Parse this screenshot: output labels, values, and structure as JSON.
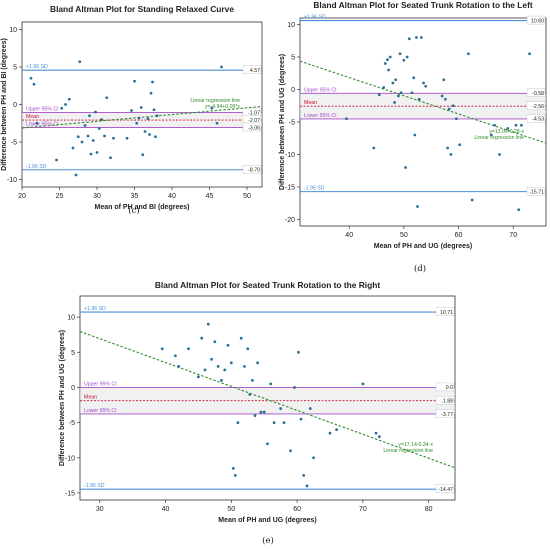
{
  "colors": {
    "sd": "#4a90d9",
    "mean": "#c8102e",
    "ci": "#a64ac9",
    "regression": "#2e8b2e",
    "point": "#2a6f97",
    "ci_band": "#e8e8e8"
  },
  "chart_data": [
    {
      "type": "scatter",
      "panel": "c",
      "caption": "(c)",
      "title": "Bland Altman Plot for Standing Relaxed Curve",
      "xlabel": "Mean of PH and BI (degrees)",
      "ylabel": "Difference between PH and BI (degrees)",
      "xlim": [
        20,
        52
      ],
      "ylim": [
        -11,
        11
      ],
      "xticks": [
        20,
        25,
        30,
        35,
        40,
        45,
        50
      ],
      "yticks": [
        -10,
        -5,
        0,
        5,
        10
      ],
      "reference_lines": [
        {
          "kind": "sd",
          "label": "+1.96 SD",
          "value": 4.57,
          "value_label": "4.57"
        },
        {
          "kind": "ci",
          "label": "Upper 95% CI",
          "value": -1.07,
          "value_label": "-1.07"
        },
        {
          "kind": "mean",
          "label": "Mean",
          "value": -2.07,
          "value_label": "-2.07"
        },
        {
          "kind": "ci",
          "label": "Lower 95% CI",
          "value": -3.06,
          "value_label": "-3.06"
        },
        {
          "kind": "sd",
          "label": "-1.96 SD",
          "value": -8.7,
          "value_label": "-8.70"
        }
      ],
      "regression": {
        "label": "Linear regression line",
        "equation": "y=-4.94+0.09*x",
        "intercept": -4.94,
        "slope": 0.09
      },
      "points": [
        [
          21.2,
          3.5
        ],
        [
          21.6,
          2.7
        ],
        [
          22.0,
          -2.5
        ],
        [
          24.6,
          -7.4
        ],
        [
          25.3,
          -0.5
        ],
        [
          25.8,
          0.0
        ],
        [
          26.3,
          0.7
        ],
        [
          26.8,
          -5.8
        ],
        [
          27.2,
          -9.4
        ],
        [
          27.5,
          -4.3
        ],
        [
          27.7,
          5.7
        ],
        [
          28.0,
          -5.0
        ],
        [
          28.4,
          -2.8
        ],
        [
          28.8,
          -4.2
        ],
        [
          29.0,
          -1.5
        ],
        [
          29.2,
          -6.6
        ],
        [
          29.5,
          -4.8
        ],
        [
          29.8,
          -1.0
        ],
        [
          30.0,
          -6.4
        ],
        [
          30.3,
          -3.2
        ],
        [
          30.6,
          -2.0
        ],
        [
          31.0,
          -4.2
        ],
        [
          31.3,
          0.9
        ],
        [
          31.8,
          -7.1
        ],
        [
          32.2,
          -4.5
        ],
        [
          34.0,
          -4.5
        ],
        [
          34.6,
          -0.8
        ],
        [
          35.0,
          3.1
        ],
        [
          35.3,
          -2.5
        ],
        [
          35.6,
          -1.8
        ],
        [
          35.9,
          -0.4
        ],
        [
          36.1,
          -6.7
        ],
        [
          36.4,
          -3.6
        ],
        [
          36.8,
          -1.9
        ],
        [
          37.0,
          -4.0
        ],
        [
          37.2,
          1.5
        ],
        [
          37.4,
          3.0
        ],
        [
          37.6,
          -0.7
        ],
        [
          37.8,
          -4.3
        ],
        [
          38.0,
          -1.5
        ],
        [
          45.3,
          -0.5
        ],
        [
          46.0,
          -2.5
        ],
        [
          46.6,
          5.0
        ]
      ]
    },
    {
      "type": "scatter",
      "panel": "d",
      "caption": "(d)",
      "title": "Bland Altman Plot for Seated Trunk Rotation to the Left",
      "xlabel": "Mean of PH and UG (degrees)",
      "ylabel": "Difference between PH and UG (degrees)",
      "xlim": [
        31,
        76
      ],
      "ylim": [
        -21,
        11
      ],
      "xticks": [
        40,
        50,
        60,
        70
      ],
      "yticks": [
        -20,
        -15,
        -10,
        -5,
        0,
        5,
        10
      ],
      "reference_lines": [
        {
          "kind": "sd",
          "label": "+1.96 SD",
          "value": 10.6,
          "value_label": "10.60"
        },
        {
          "kind": "ci",
          "label": "Upper 95% CI",
          "value": -0.58,
          "value_label": "-0.58"
        },
        {
          "kind": "mean",
          "label": "Mean",
          "value": -2.56,
          "value_label": "-2.56"
        },
        {
          "kind": "ci",
          "label": "Lower 95% CI",
          "value": -4.53,
          "value_label": "-4.53"
        },
        {
          "kind": "sd",
          "label": "-1.96 SD",
          "value": -15.71,
          "value_label": "-15.71"
        }
      ],
      "regression": {
        "label": "Linear regression line",
        "equation": "y=13.04-0.28·x",
        "intercept": 13.04,
        "slope": -0.28
      },
      "points": [
        [
          39.5,
          -4.5
        ],
        [
          44.5,
          -9.0
        ],
        [
          45.5,
          -0.8
        ],
        [
          46.3,
          0.3
        ],
        [
          46.6,
          4.0
        ],
        [
          47.0,
          4.6
        ],
        [
          47.2,
          3.0
        ],
        [
          47.5,
          5.0
        ],
        [
          48.0,
          1.0
        ],
        [
          48.3,
          -2.0
        ],
        [
          48.5,
          1.5
        ],
        [
          49.0,
          -1.0
        ],
        [
          49.3,
          5.5
        ],
        [
          49.5,
          -0.5
        ],
        [
          50.0,
          4.5
        ],
        [
          50.3,
          -12.0
        ],
        [
          50.6,
          5.0
        ],
        [
          51.0,
          7.8
        ],
        [
          51.5,
          -0.5
        ],
        [
          51.8,
          1.8
        ],
        [
          52.0,
          -7.0
        ],
        [
          52.3,
          8.0
        ],
        [
          52.5,
          -18.0
        ],
        [
          52.8,
          -1.5
        ],
        [
          53.2,
          8.0
        ],
        [
          53.6,
          1.0
        ],
        [
          54.0,
          0.5
        ],
        [
          57.0,
          -1.0
        ],
        [
          57.3,
          1.5
        ],
        [
          57.6,
          -1.5
        ],
        [
          58.0,
          -9.0
        ],
        [
          58.3,
          -3.0
        ],
        [
          58.6,
          -10.0
        ],
        [
          59.0,
          -2.5
        ],
        [
          59.6,
          -4.5
        ],
        [
          60.2,
          -8.5
        ],
        [
          61.8,
          5.5
        ],
        [
          62.5,
          -17.0
        ],
        [
          66.0,
          -7.0
        ],
        [
          66.6,
          -5.5
        ],
        [
          67.5,
          -10.0
        ],
        [
          69.0,
          -6.0
        ],
        [
          70.5,
          -5.5
        ],
        [
          71.0,
          -18.5
        ],
        [
          71.5,
          -5.5
        ],
        [
          73.0,
          5.5
        ]
      ]
    },
    {
      "type": "scatter",
      "panel": "e",
      "caption": "(e)",
      "title": "Bland Altman Plot for Seated Trunk Rotation to the Right",
      "xlabel": "Mean of PH and UG (degrees)",
      "ylabel": "Difference between PH and UG (degrees)",
      "xlim": [
        27,
        84
      ],
      "ylim": [
        -16,
        13
      ],
      "xticks": [
        30,
        40,
        50,
        60,
        70,
        80
      ],
      "yticks": [
        -15,
        -10,
        -5,
        0,
        5,
        10
      ],
      "reference_lines": [
        {
          "kind": "sd",
          "label": "+1.96 SD",
          "value": 10.71,
          "value_label": "10.71"
        },
        {
          "kind": "ci",
          "label": "Upper 95% CI",
          "value": 0.0,
          "value_label": "0.0"
        },
        {
          "kind": "mean",
          "label": "Mean",
          "value": -1.88,
          "value_label": "-1.88"
        },
        {
          "kind": "ci",
          "label": "Lower 95% CI",
          "value": -3.77,
          "value_label": "-3.77"
        },
        {
          "kind": "sd",
          "label": "-1.96 SD",
          "value": -14.47,
          "value_label": "-14.47"
        }
      ],
      "regression": {
        "label": "Linear regression line",
        "equation": "y=17.14-0.34·x",
        "intercept": 17.14,
        "slope": -0.34
      },
      "points": [
        [
          39.5,
          5.5
        ],
        [
          41.5,
          4.5
        ],
        [
          42.0,
          3.0
        ],
        [
          43.5,
          5.5
        ],
        [
          45.0,
          1.5
        ],
        [
          45.5,
          7.0
        ],
        [
          46.0,
          2.5
        ],
        [
          46.5,
          9.0
        ],
        [
          47.0,
          4.0
        ],
        [
          47.5,
          6.5
        ],
        [
          48.0,
          3.0
        ],
        [
          48.5,
          1.0
        ],
        [
          49.0,
          2.5
        ],
        [
          49.5,
          6.0
        ],
        [
          50.0,
          3.5
        ],
        [
          50.3,
          -11.5
        ],
        [
          50.6,
          -12.5
        ],
        [
          51.0,
          -5.0
        ],
        [
          51.5,
          7.0
        ],
        [
          52.0,
          3.0
        ],
        [
          52.5,
          5.5
        ],
        [
          52.8,
          -1.0
        ],
        [
          53.2,
          1.0
        ],
        [
          53.6,
          -4.0
        ],
        [
          54.0,
          3.5
        ],
        [
          54.5,
          -3.5
        ],
        [
          55.0,
          -3.5
        ],
        [
          55.5,
          -8.0
        ],
        [
          56.0,
          0.5
        ],
        [
          56.5,
          -5.0
        ],
        [
          57.5,
          -3.0
        ],
        [
          58.0,
          -5.0
        ],
        [
          59.0,
          -9.0
        ],
        [
          59.6,
          0.0
        ],
        [
          60.2,
          5.0
        ],
        [
          60.6,
          -4.5
        ],
        [
          61.0,
          -12.5
        ],
        [
          61.5,
          -14.0
        ],
        [
          62.0,
          -3.0
        ],
        [
          62.5,
          -10.0
        ],
        [
          65.0,
          -6.5
        ],
        [
          66.0,
          -6.0
        ],
        [
          70.0,
          0.5
        ],
        [
          72.0,
          -6.5
        ],
        [
          72.5,
          -7.0
        ]
      ]
    }
  ]
}
